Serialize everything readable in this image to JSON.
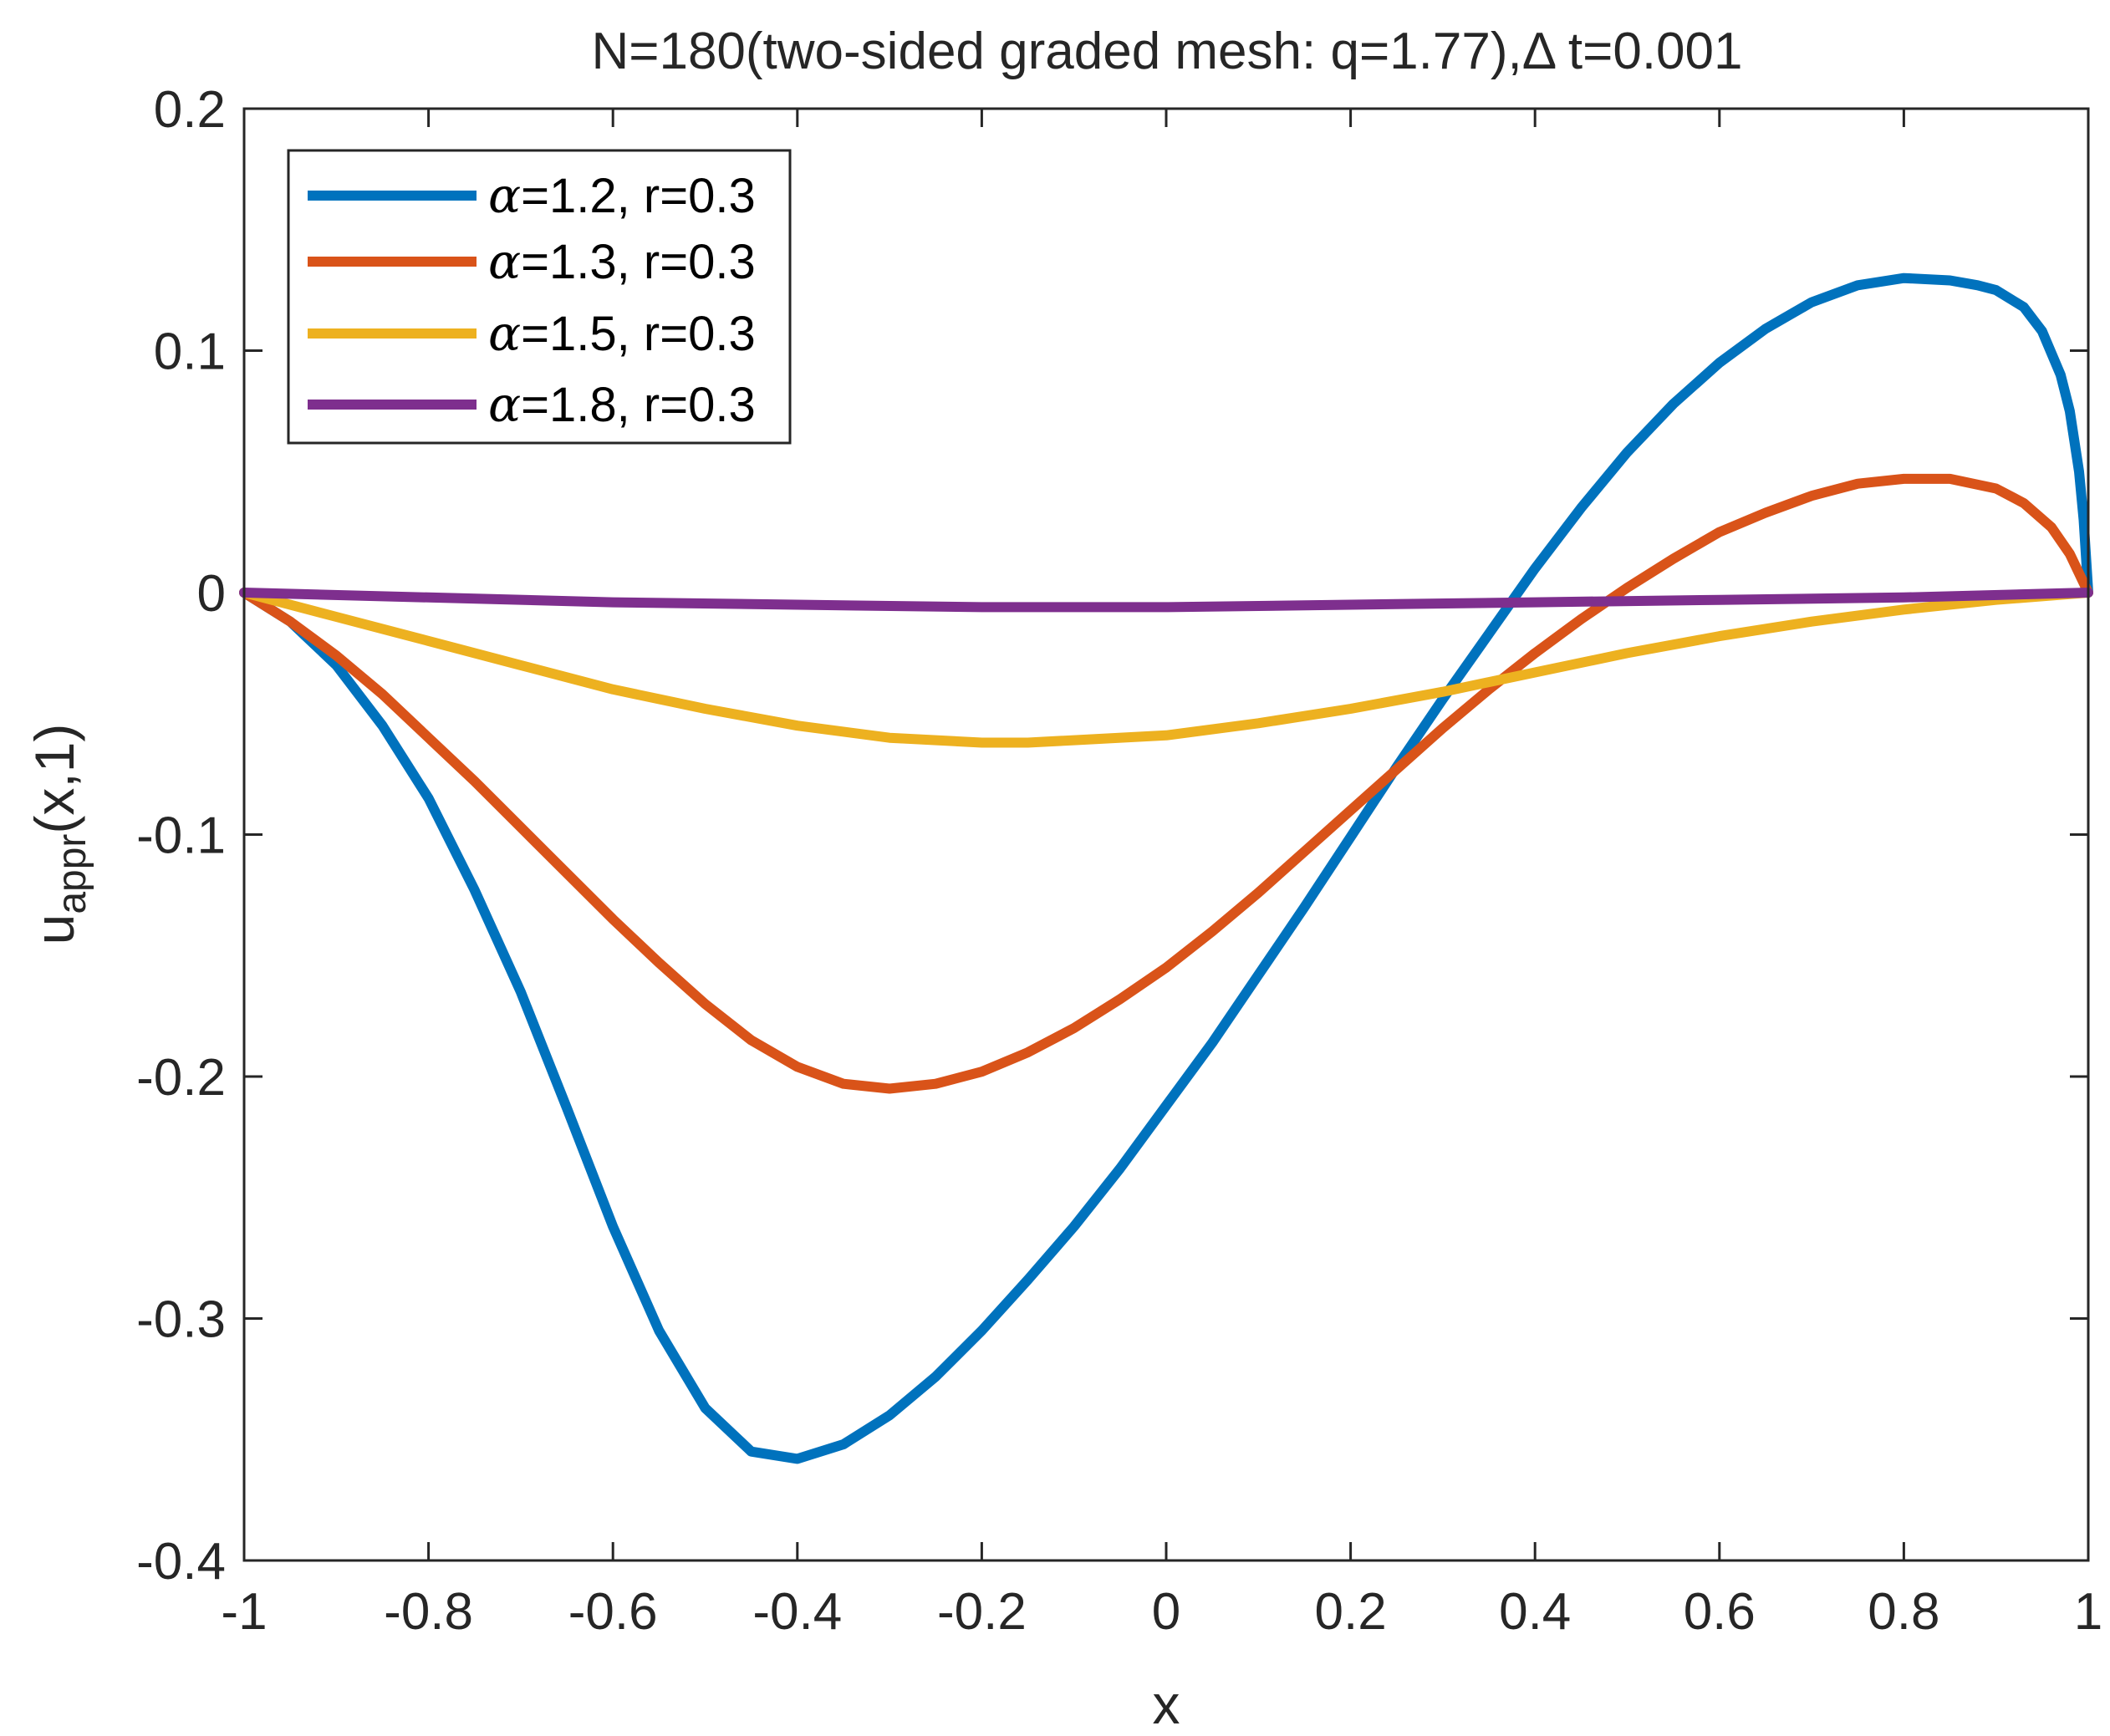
{
  "chart_data": {
    "type": "line",
    "title": "N=180(two-sided graded mesh: q=1.77),Δ t=0.001",
    "xlabel": "x",
    "ylabel_main": "u",
    "ylabel_sub": "appr",
    "ylabel_tail": "(x,1)",
    "xlim": [
      -1,
      1
    ],
    "ylim": [
      -0.4,
      0.2
    ],
    "xticks": [
      -1,
      -0.8,
      -0.6,
      -0.4,
      -0.2,
      0,
      0.2,
      0.4,
      0.6,
      0.8,
      1
    ],
    "xtick_labels": [
      "-1",
      "-0.8",
      "-0.6",
      "-0.4",
      "-0.2",
      "0",
      "0.2",
      "0.4",
      "0.6",
      "0.8",
      "1"
    ],
    "yticks": [
      -0.4,
      -0.3,
      -0.2,
      -0.1,
      0,
      0.1,
      0.2
    ],
    "ytick_labels": [
      "-0.4",
      "-0.3",
      "-0.2",
      "-0.1",
      "0",
      "0.1",
      "0.2"
    ],
    "legend_position": "top-left",
    "series": [
      {
        "name": "α=1.2, r=0.3",
        "alpha": "α",
        "params": "=1.2, r=0.3",
        "color": "#0072BD",
        "x": [
          -1,
          -0.95,
          -0.9,
          -0.85,
          -0.8,
          -0.75,
          -0.7,
          -0.65,
          -0.6,
          -0.55,
          -0.5,
          -0.45,
          -0.4,
          -0.35,
          -0.3,
          -0.25,
          -0.2,
          -0.15,
          -0.1,
          -0.05,
          0,
          0.05,
          0.1,
          0.15,
          0.2,
          0.25,
          0.3,
          0.35,
          0.4,
          0.45,
          0.5,
          0.55,
          0.6,
          0.65,
          0.7,
          0.75,
          0.8,
          0.85,
          0.88,
          0.9,
          0.93,
          0.95,
          0.97,
          0.98,
          0.99,
          0.995,
          1
        ],
        "y": [
          0,
          -0.012,
          -0.03,
          -0.055,
          -0.085,
          -0.123,
          -0.165,
          -0.213,
          -0.262,
          -0.305,
          -0.337,
          -0.355,
          -0.358,
          -0.352,
          -0.34,
          -0.324,
          -0.305,
          -0.284,
          -0.262,
          -0.238,
          -0.212,
          -0.186,
          -0.158,
          -0.13,
          -0.101,
          -0.072,
          -0.044,
          -0.017,
          0.01,
          0.035,
          0.058,
          0.078,
          0.095,
          0.109,
          0.12,
          0.127,
          0.13,
          0.129,
          0.127,
          0.125,
          0.118,
          0.108,
          0.09,
          0.075,
          0.05,
          0.03,
          0
        ]
      },
      {
        "name": "α=1.3, r=0.3",
        "alpha": "α",
        "params": "=1.3, r=0.3",
        "color": "#D95319",
        "x": [
          -1,
          -0.95,
          -0.9,
          -0.85,
          -0.8,
          -0.75,
          -0.7,
          -0.65,
          -0.6,
          -0.55,
          -0.5,
          -0.45,
          -0.4,
          -0.35,
          -0.3,
          -0.25,
          -0.2,
          -0.15,
          -0.1,
          -0.05,
          0,
          0.05,
          0.1,
          0.15,
          0.2,
          0.25,
          0.3,
          0.35,
          0.4,
          0.45,
          0.5,
          0.55,
          0.6,
          0.65,
          0.7,
          0.75,
          0.8,
          0.85,
          0.9,
          0.93,
          0.96,
          0.98,
          1
        ],
        "y": [
          0,
          -0.012,
          -0.026,
          -0.042,
          -0.06,
          -0.078,
          -0.097,
          -0.116,
          -0.135,
          -0.153,
          -0.17,
          -0.185,
          -0.196,
          -0.203,
          -0.205,
          -0.203,
          -0.198,
          -0.19,
          -0.18,
          -0.168,
          -0.155,
          -0.14,
          -0.124,
          -0.107,
          -0.09,
          -0.073,
          -0.056,
          -0.04,
          -0.025,
          -0.011,
          0.002,
          0.014,
          0.025,
          0.033,
          0.04,
          0.045,
          0.047,
          0.047,
          0.043,
          0.037,
          0.027,
          0.016,
          0
        ]
      },
      {
        "name": "α=1.5, r=0.3",
        "alpha": "α",
        "params": "=1.5, r=0.3",
        "color": "#EDB120",
        "x": [
          -1,
          -0.9,
          -0.8,
          -0.7,
          -0.6,
          -0.5,
          -0.4,
          -0.3,
          -0.2,
          -0.15,
          -0.1,
          0,
          0.1,
          0.2,
          0.3,
          0.4,
          0.5,
          0.6,
          0.7,
          0.8,
          0.9,
          1
        ],
        "y": [
          0,
          -0.01,
          -0.02,
          -0.03,
          -0.04,
          -0.048,
          -0.055,
          -0.06,
          -0.062,
          -0.062,
          -0.061,
          -0.059,
          -0.054,
          -0.048,
          -0.041,
          -0.033,
          -0.025,
          -0.018,
          -0.012,
          -0.007,
          -0.003,
          0
        ]
      },
      {
        "name": "α=1.8, r=0.3",
        "alpha": "α",
        "params": "=1.8, r=0.3",
        "color": "#7E2F8E",
        "x": [
          -1,
          -0.8,
          -0.6,
          -0.4,
          -0.2,
          0,
          0.2,
          0.4,
          0.6,
          0.8,
          1
        ],
        "y": [
          0,
          -0.002,
          -0.004,
          -0.005,
          -0.006,
          -0.006,
          -0.005,
          -0.004,
          -0.003,
          -0.002,
          0
        ]
      }
    ]
  }
}
